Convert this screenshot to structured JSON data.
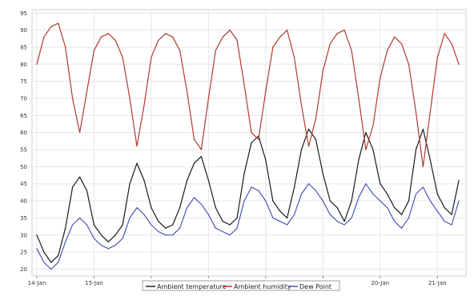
{
  "chart_data": {
    "type": "line",
    "title": "",
    "xlabel": "",
    "ylabel": "",
    "ylim": [
      18,
      96
    ],
    "xlim": [
      "2014-01-13T22:00",
      "2014-01-21T12:00"
    ],
    "y_ticks": [
      20,
      25,
      30,
      35,
      40,
      45,
      50,
      55,
      60,
      65,
      70,
      75,
      80,
      85,
      90,
      95
    ],
    "x_ticks": [
      {
        "at": "2014-01-14T00:00",
        "label": "14-Jan"
      },
      {
        "at": "2014-01-15T00:00",
        "label": "15-Jan"
      },
      {
        "at": "2014-01-16T00:00",
        "label": "16-Jan"
      },
      {
        "at": "2014-01-17T00:00",
        "label": "17-Jan"
      },
      {
        "at": "2014-01-18T00:00",
        "label": "18-Jan"
      },
      {
        "at": "2014-01-19T00:00",
        "label": "19-Jan"
      },
      {
        "at": "2014-01-20T00:00",
        "label": "20-Jan"
      },
      {
        "at": "2014-01-21T00:00",
        "label": "21-Jan"
      }
    ],
    "grid": true,
    "legend_position": "bottom",
    "series": [
      {
        "name": "Ambient temperature",
        "color": "#1a1a1a",
        "x": [
          "2014-01-14T00:00",
          "2014-01-14T03:00",
          "2014-01-14T06:00",
          "2014-01-14T09:00",
          "2014-01-14T12:00",
          "2014-01-14T15:00",
          "2014-01-14T18:00",
          "2014-01-14T21:00",
          "2014-01-15T00:00",
          "2014-01-15T03:00",
          "2014-01-15T06:00",
          "2014-01-15T09:00",
          "2014-01-15T12:00",
          "2014-01-15T15:00",
          "2014-01-15T18:00",
          "2014-01-15T21:00",
          "2014-01-16T00:00",
          "2014-01-16T03:00",
          "2014-01-16T06:00",
          "2014-01-16T09:00",
          "2014-01-16T12:00",
          "2014-01-16T15:00",
          "2014-01-16T18:00",
          "2014-01-16T21:00",
          "2014-01-17T00:00",
          "2014-01-17T03:00",
          "2014-01-17T06:00",
          "2014-01-17T09:00",
          "2014-01-17T12:00",
          "2014-01-17T15:00",
          "2014-01-17T18:00",
          "2014-01-17T21:00",
          "2014-01-18T00:00",
          "2014-01-18T03:00",
          "2014-01-18T06:00",
          "2014-01-18T09:00",
          "2014-01-18T12:00",
          "2014-01-18T15:00",
          "2014-01-18T18:00",
          "2014-01-18T21:00",
          "2014-01-19T00:00",
          "2014-01-19T03:00",
          "2014-01-19T06:00",
          "2014-01-19T09:00",
          "2014-01-19T12:00",
          "2014-01-19T15:00",
          "2014-01-19T18:00",
          "2014-01-19T21:00",
          "2014-01-20T00:00",
          "2014-01-20T03:00",
          "2014-01-20T06:00",
          "2014-01-20T09:00",
          "2014-01-20T12:00",
          "2014-01-20T15:00",
          "2014-01-20T18:00",
          "2014-01-20T21:00",
          "2014-01-21T00:00",
          "2014-01-21T03:00",
          "2014-01-21T06:00",
          "2014-01-21T09:00"
        ],
        "values": [
          30,
          25,
          22,
          24,
          32,
          44,
          47,
          43,
          33,
          30,
          28,
          30,
          33,
          45,
          51,
          46,
          38,
          34,
          32,
          33,
          38,
          46,
          51,
          53,
          46,
          38,
          34,
          33,
          35,
          48,
          57,
          59,
          52,
          40,
          37,
          35,
          44,
          55,
          61,
          58,
          48,
          40,
          38,
          34,
          40,
          52,
          60,
          55,
          45,
          42,
          38,
          36,
          40,
          55,
          61,
          52,
          42,
          38,
          36,
          46
        ]
      },
      {
        "name": "Ambient humidity",
        "color": "#b03a2e",
        "x": [
          "2014-01-14T00:00",
          "2014-01-14T03:00",
          "2014-01-14T06:00",
          "2014-01-14T09:00",
          "2014-01-14T12:00",
          "2014-01-14T15:00",
          "2014-01-14T18:00",
          "2014-01-14T21:00",
          "2014-01-15T00:00",
          "2014-01-15T03:00",
          "2014-01-15T06:00",
          "2014-01-15T09:00",
          "2014-01-15T12:00",
          "2014-01-15T15:00",
          "2014-01-15T18:00",
          "2014-01-15T21:00",
          "2014-01-16T00:00",
          "2014-01-16T03:00",
          "2014-01-16T06:00",
          "2014-01-16T09:00",
          "2014-01-16T12:00",
          "2014-01-16T15:00",
          "2014-01-16T18:00",
          "2014-01-16T21:00",
          "2014-01-17T00:00",
          "2014-01-17T03:00",
          "2014-01-17T06:00",
          "2014-01-17T09:00",
          "2014-01-17T12:00",
          "2014-01-17T15:00",
          "2014-01-17T18:00",
          "2014-01-17T21:00",
          "2014-01-18T00:00",
          "2014-01-18T03:00",
          "2014-01-18T06:00",
          "2014-01-18T09:00",
          "2014-01-18T12:00",
          "2014-01-18T15:00",
          "2014-01-18T18:00",
          "2014-01-18T21:00",
          "2014-01-19T00:00",
          "2014-01-19T03:00",
          "2014-01-19T06:00",
          "2014-01-19T09:00",
          "2014-01-19T12:00",
          "2014-01-19T15:00",
          "2014-01-19T18:00",
          "2014-01-19T21:00",
          "2014-01-20T00:00",
          "2014-01-20T03:00",
          "2014-01-20T06:00",
          "2014-01-20T09:00",
          "2014-01-20T12:00",
          "2014-01-20T15:00",
          "2014-01-20T18:00",
          "2014-01-20T21:00",
          "2014-01-21T00:00",
          "2014-01-21T03:00",
          "2014-01-21T06:00",
          "2014-01-21T09:00"
        ],
        "values": [
          80,
          88,
          91,
          92,
          85,
          70,
          60,
          72,
          84,
          88,
          89,
          87,
          82,
          70,
          56,
          68,
          82,
          87,
          89,
          88,
          84,
          72,
          58,
          55,
          70,
          84,
          88,
          90,
          87,
          74,
          60,
          58,
          72,
          85,
          88,
          90,
          82,
          68,
          56,
          64,
          78,
          86,
          89,
          90,
          84,
          70,
          55,
          62,
          76,
          84,
          88,
          86,
          80,
          66,
          50,
          66,
          82,
          89,
          86,
          80
        ]
      },
      {
        "name": "Dew Point",
        "color": "#4a56b8",
        "x": [
          "2014-01-14T00:00",
          "2014-01-14T03:00",
          "2014-01-14T06:00",
          "2014-01-14T09:00",
          "2014-01-14T12:00",
          "2014-01-14T15:00",
          "2014-01-14T18:00",
          "2014-01-14T21:00",
          "2014-01-15T00:00",
          "2014-01-15T03:00",
          "2014-01-15T06:00",
          "2014-01-15T09:00",
          "2014-01-15T12:00",
          "2014-01-15T15:00",
          "2014-01-15T18:00",
          "2014-01-15T21:00",
          "2014-01-16T00:00",
          "2014-01-16T03:00",
          "2014-01-16T06:00",
          "2014-01-16T09:00",
          "2014-01-16T12:00",
          "2014-01-16T15:00",
          "2014-01-16T18:00",
          "2014-01-16T21:00",
          "2014-01-17T00:00",
          "2014-01-17T03:00",
          "2014-01-17T06:00",
          "2014-01-17T09:00",
          "2014-01-17T12:00",
          "2014-01-17T15:00",
          "2014-01-17T18:00",
          "2014-01-17T21:00",
          "2014-01-18T00:00",
          "2014-01-18T03:00",
          "2014-01-18T06:00",
          "2014-01-18T09:00",
          "2014-01-18T12:00",
          "2014-01-18T15:00",
          "2014-01-18T18:00",
          "2014-01-18T21:00",
          "2014-01-19T00:00",
          "2014-01-19T03:00",
          "2014-01-19T06:00",
          "2014-01-19T09:00",
          "2014-01-19T12:00",
          "2014-01-19T15:00",
          "2014-01-19T18:00",
          "2014-01-19T21:00",
          "2014-01-20T00:00",
          "2014-01-20T03:00",
          "2014-01-20T06:00",
          "2014-01-20T09:00",
          "2014-01-20T12:00",
          "2014-01-20T15:00",
          "2014-01-20T18:00",
          "2014-01-20T21:00",
          "2014-01-21T00:00",
          "2014-01-21T03:00",
          "2014-01-21T06:00",
          "2014-01-21T09:00"
        ],
        "values": [
          26,
          22,
          20,
          22,
          28,
          33,
          35,
          33,
          29,
          27,
          26,
          27,
          29,
          35,
          38,
          36,
          33,
          31,
          30,
          30,
          32,
          38,
          41,
          39,
          36,
          32,
          31,
          30,
          32,
          40,
          44,
          43,
          40,
          35,
          34,
          33,
          36,
          42,
          45,
          43,
          40,
          36,
          34,
          33,
          35,
          41,
          45,
          42,
          40,
          38,
          34,
          32,
          35,
          42,
          44,
          40,
          37,
          34,
          33,
          40
        ]
      }
    ]
  }
}
